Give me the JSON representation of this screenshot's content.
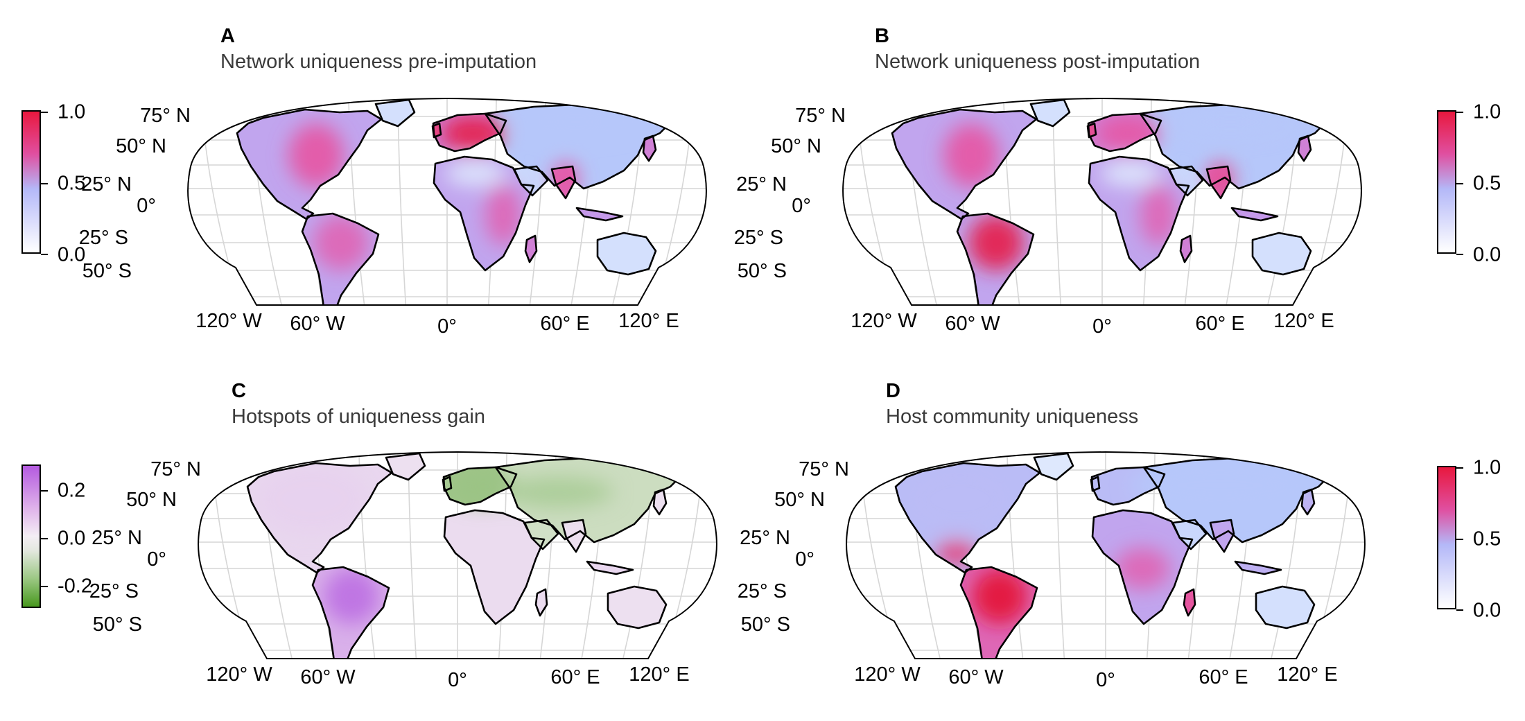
{
  "panels": [
    {
      "letter": "A",
      "title": "Network uniqueness pre-imputation",
      "colormap": "viridis-like white-blue-pink-red",
      "colorbar": {
        "side": "left",
        "ticks": [
          "1.0",
          "0.5",
          "0.0"
        ],
        "colors": [
          "#e8183e",
          "#e04fa0",
          "#b4b8f8",
          "#ffffff"
        ]
      },
      "hotspots": [
        {
          "region": "Europe",
          "level": 0.95
        },
        {
          "region": "Eastern USA",
          "level": 0.75
        },
        {
          "region": "Amazon",
          "level": 0.7
        },
        {
          "region": "East Africa",
          "level": 0.7
        },
        {
          "region": "India",
          "level": 0.75
        },
        {
          "region": "Sahara",
          "level": 0.1
        },
        {
          "region": "Siberia",
          "level": 0.3
        }
      ]
    },
    {
      "letter": "B",
      "title": "Network uniqueness post-imputation",
      "colorbar": {
        "side": "right",
        "ticks": [
          "1.0",
          "0.5",
          "0.0"
        ],
        "colors": [
          "#e8183e",
          "#e04fa0",
          "#b4b8f8",
          "#ffffff"
        ]
      },
      "hotspots": [
        {
          "region": "Amazon",
          "level": 0.95
        },
        {
          "region": "Eastern USA",
          "level": 0.75
        },
        {
          "region": "Europe",
          "level": 0.75
        },
        {
          "region": "East Africa",
          "level": 0.7
        },
        {
          "region": "India",
          "level": 0.8
        },
        {
          "region": "Sahara",
          "level": 0.1
        },
        {
          "region": "Siberia",
          "level": 0.3
        }
      ]
    },
    {
      "letter": "C",
      "title": "Hotspots of uniqueness gain",
      "colorbar": {
        "side": "left",
        "ticks": [
          "0.2",
          "0.0",
          "-0.2"
        ],
        "colors": [
          "#b45ae0",
          "#eed8ee",
          "#ececec",
          "#48981e"
        ]
      },
      "hotspots": [
        {
          "region": "Amazon",
          "level": 0.25
        },
        {
          "region": "Europe",
          "level": -0.15
        },
        {
          "region": "Central Asia",
          "level": -0.12
        },
        {
          "region": "North America",
          "level": 0.05
        }
      ]
    },
    {
      "letter": "D",
      "title": "Host community uniqueness",
      "colorbar": {
        "side": "right",
        "ticks": [
          "1.0",
          "0.5",
          "0.0"
        ],
        "colors": [
          "#e8183e",
          "#e04fa0",
          "#b4b8f8",
          "#ffffff"
        ]
      },
      "hotspots": [
        {
          "region": "Amazon",
          "level": 1.0
        },
        {
          "region": "Central America",
          "level": 0.85
        },
        {
          "region": "Central Africa",
          "level": 0.7
        },
        {
          "region": "Madagascar",
          "level": 0.8
        },
        {
          "region": "North America",
          "level": 0.35
        },
        {
          "region": "Eurasia",
          "level": 0.3
        }
      ]
    }
  ],
  "lat_labels": [
    "75° N",
    "50° N",
    "25° N",
    "0°",
    "25° S",
    "50° S"
  ],
  "lon_labels": [
    "120° W",
    "60° W",
    "0°",
    "60° E",
    "120° E"
  ]
}
